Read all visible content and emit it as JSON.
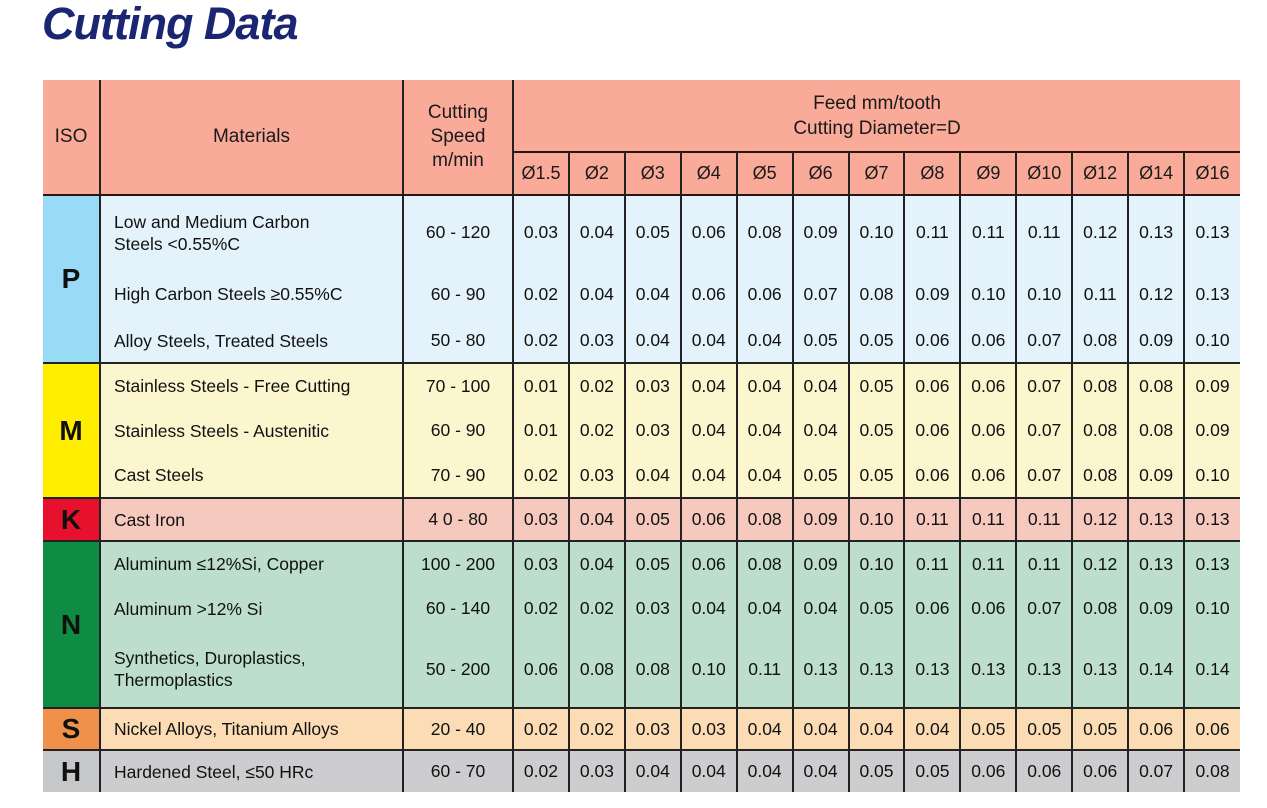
{
  "title": "Cutting Data",
  "header": {
    "iso": "ISO",
    "materials": "Materials",
    "speed_lines": [
      "Cutting",
      "Speed",
      "m/min"
    ],
    "feed_lines": [
      "Feed mm/tooth",
      "Cutting Diameter=D"
    ],
    "diameters": [
      "Ø1.5",
      "Ø2",
      "Ø3",
      "Ø4",
      "Ø5",
      "Ø6",
      "Ø7",
      "Ø8",
      "Ø9",
      "Ø10",
      "Ø12",
      "Ø14",
      "Ø16"
    ],
    "header_bg": "#F9AA98"
  },
  "colors": {
    "title": "#1B2672",
    "border": "#222222"
  },
  "groups": [
    {
      "iso": "P",
      "label_bg": "#99DBF7",
      "row_bg": "#E4F3FB",
      "rows": [
        {
          "material": "Low and Medium Carbon\nSteels <0.55%C",
          "speed": "60 - 120",
          "feeds": [
            "0.03",
            "0.04",
            "0.05",
            "0.06",
            "0.08",
            "0.09",
            "0.10",
            "0.11",
            "0.11",
            "0.11",
            "0.12",
            "0.13",
            "0.13"
          ]
        },
        {
          "material": "High Carbon Steels ≥0.55%C",
          "speed": "60 - 90",
          "feeds": [
            "0.02",
            "0.04",
            "0.04",
            "0.06",
            "0.06",
            "0.07",
            "0.08",
            "0.09",
            "0.10",
            "0.10",
            "0.11",
            "0.12",
            "0.13"
          ]
        },
        {
          "material": "Alloy Steels, Treated Steels",
          "speed": "50 - 80",
          "feeds": [
            "0.02",
            "0.03",
            "0.04",
            "0.04",
            "0.04",
            "0.05",
            "0.05",
            "0.06",
            "0.06",
            "0.07",
            "0.08",
            "0.09",
            "0.10"
          ]
        }
      ]
    },
    {
      "iso": "M",
      "label_bg": "#FFED00",
      "row_bg": "#FCF6CE",
      "rows": [
        {
          "material": "Stainless Steels - Free Cutting",
          "speed": "70 - 100",
          "feeds": [
            "0.01",
            "0.02",
            "0.03",
            "0.04",
            "0.04",
            "0.04",
            "0.05",
            "0.06",
            "0.06",
            "0.07",
            "0.08",
            "0.08",
            "0.09"
          ]
        },
        {
          "material": "Stainless Steels - Austenitic",
          "speed": "60 - 90",
          "feeds": [
            "0.01",
            "0.02",
            "0.03",
            "0.04",
            "0.04",
            "0.04",
            "0.05",
            "0.06",
            "0.06",
            "0.07",
            "0.08",
            "0.08",
            "0.09"
          ]
        },
        {
          "material": "Cast Steels",
          "speed": "70 - 90",
          "feeds": [
            "0.02",
            "0.03",
            "0.04",
            "0.04",
            "0.04",
            "0.05",
            "0.05",
            "0.06",
            "0.06",
            "0.07",
            "0.08",
            "0.09",
            "0.10"
          ]
        }
      ]
    },
    {
      "iso": "K",
      "label_bg": "#E8112D",
      "row_bg": "#F6C9BE",
      "rows": [
        {
          "material": "Cast Iron",
          "speed": "4 0 - 80",
          "feeds": [
            "0.03",
            "0.04",
            "0.05",
            "0.06",
            "0.08",
            "0.09",
            "0.10",
            "0.11",
            "0.11",
            "0.11",
            "0.12",
            "0.13",
            "0.13"
          ]
        }
      ]
    },
    {
      "iso": "N",
      "label_bg": "#0E8C44",
      "row_bg": "#BCDECA",
      "rows": [
        {
          "material": "Aluminum ≤12%Si, Copper",
          "speed": "100 - 200",
          "feeds": [
            "0.03",
            "0.04",
            "0.05",
            "0.06",
            "0.08",
            "0.09",
            "0.10",
            "0.11",
            "0.11",
            "0.11",
            "0.12",
            "0.13",
            "0.13"
          ]
        },
        {
          "material": "Aluminum >12% Si",
          "speed": "60 - 140",
          "feeds": [
            "0.02",
            "0.02",
            "0.03",
            "0.04",
            "0.04",
            "0.04",
            "0.05",
            "0.06",
            "0.06",
            "0.07",
            "0.08",
            "0.09",
            "0.10"
          ]
        },
        {
          "material": "Synthetics, Duroplastics,\nThermoplastics",
          "speed": "50 - 200",
          "feeds": [
            "0.06",
            "0.08",
            "0.08",
            "0.10",
            "0.11",
            "0.13",
            "0.13",
            "0.13",
            "0.13",
            "0.13",
            "0.13",
            "0.14",
            "0.14"
          ]
        }
      ]
    },
    {
      "iso": "S",
      "label_bg": "#F0914B",
      "row_bg": "#FBDCB4",
      "rows": [
        {
          "material": "Nickel Alloys, Titanium Alloys",
          "speed": "20 - 40",
          "feeds": [
            "0.02",
            "0.02",
            "0.03",
            "0.03",
            "0.04",
            "0.04",
            "0.04",
            "0.04",
            "0.05",
            "0.05",
            "0.05",
            "0.06",
            "0.06"
          ]
        }
      ]
    },
    {
      "iso": "H",
      "label_bg": "#C6C7C9",
      "row_bg": "#CDCDCF",
      "rows": [
        {
          "material": "Hardened Steel, ≤50 HRc",
          "speed": "60 - 70",
          "feeds": [
            "0.02",
            "0.03",
            "0.04",
            "0.04",
            "0.04",
            "0.04",
            "0.05",
            "0.05",
            "0.06",
            "0.06",
            "0.06",
            "0.07",
            "0.08"
          ]
        }
      ]
    }
  ]
}
